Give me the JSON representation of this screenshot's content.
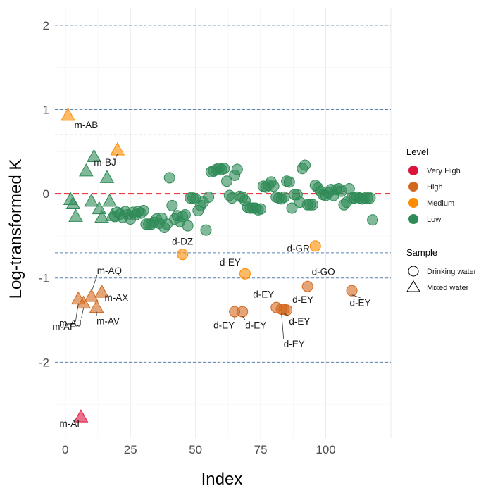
{
  "chart_data": {
    "type": "scatter",
    "xlabel": "Index",
    "ylabel": "Log-transformed K",
    "xlim": [
      -4,
      125
    ],
    "ylim": [
      -2.9,
      2.2
    ],
    "xticks": [
      0,
      25,
      50,
      75,
      100
    ],
    "yticks": [
      2,
      1,
      0,
      -1,
      -2
    ],
    "reference_lines": {
      "dashed_red": [
        0
      ],
      "dashed_blue": [
        2,
        1,
        0.7,
        -0.7,
        -1,
        -2
      ]
    },
    "grid": true,
    "legend": {
      "placement": "right",
      "level_title": "Level",
      "levels": [
        {
          "name": "Very High",
          "color": "#dc143c"
        },
        {
          "name": "High",
          "color": "#d2691e"
        },
        {
          "name": "Medium",
          "color": "#ff8c00"
        },
        {
          "name": "Low",
          "color": "#2e8b57"
        }
      ],
      "sample_title": "Sample",
      "samples": [
        {
          "name": "Drinking water",
          "shape": "circle"
        },
        {
          "name": "Mixed water",
          "shape": "triangle"
        }
      ]
    },
    "points": [
      {
        "x": 1,
        "y": 0.93,
        "level": "Medium",
        "sample": "Mixed water",
        "label": "m-AB"
      },
      {
        "x": 20,
        "y": 0.52,
        "level": "Medium",
        "sample": "Mixed water",
        "label": "m-BJ"
      },
      {
        "x": 2,
        "y": -0.07,
        "level": "Low",
        "sample": "Mixed water"
      },
      {
        "x": 3,
        "y": -0.12,
        "level": "Low",
        "sample": "Mixed water"
      },
      {
        "x": 4,
        "y": -0.27,
        "level": "Low",
        "sample": "Mixed water"
      },
      {
        "x": 8,
        "y": 0.27,
        "level": "Low",
        "sample": "Mixed water"
      },
      {
        "x": 10,
        "y": -0.09,
        "level": "Low",
        "sample": "Mixed water"
      },
      {
        "x": 11,
        "y": 0.44,
        "level": "Low",
        "sample": "Mixed water"
      },
      {
        "x": 13,
        "y": -0.18,
        "level": "Low",
        "sample": "Mixed water"
      },
      {
        "x": 14,
        "y": -0.28,
        "level": "Low",
        "sample": "Mixed water"
      },
      {
        "x": 16,
        "y": 0.19,
        "level": "Low",
        "sample": "Mixed water"
      },
      {
        "x": 17,
        "y": -0.09,
        "level": "Low",
        "sample": "Mixed water"
      },
      {
        "x": 18,
        "y": -0.26,
        "level": "Low",
        "sample": "Mixed water"
      },
      {
        "x": 5,
        "y": -1.25,
        "level": "High",
        "sample": "Mixed water",
        "label": "m-AF"
      },
      {
        "x": 7,
        "y": -1.3,
        "level": "High",
        "sample": "Mixed water",
        "label": "m-AJ"
      },
      {
        "x": 10,
        "y": -1.22,
        "level": "High",
        "sample": "Mixed water",
        "label": "m-AQ"
      },
      {
        "x": 12,
        "y": -1.35,
        "level": "High",
        "sample": "Mixed water",
        "label": "m-AV"
      },
      {
        "x": 14,
        "y": -1.17,
        "level": "High",
        "sample": "Mixed water",
        "label": "m-AX"
      },
      {
        "x": 6,
        "y": -2.65,
        "level": "Very High",
        "sample": "Mixed water",
        "label": "m-AI"
      },
      {
        "x": 19,
        "y": -0.27,
        "level": "Low",
        "sample": "Drinking water"
      },
      {
        "x": 20,
        "y": -0.22,
        "level": "Low",
        "sample": "Drinking water"
      },
      {
        "x": 21,
        "y": -0.24,
        "level": "Low",
        "sample": "Drinking water"
      },
      {
        "x": 22,
        "y": -0.28,
        "level": "Low",
        "sample": "Drinking water"
      },
      {
        "x": 23,
        "y": -0.21,
        "level": "Low",
        "sample": "Drinking water"
      },
      {
        "x": 24,
        "y": -0.25,
        "level": "Low",
        "sample": "Drinking water"
      },
      {
        "x": 25,
        "y": -0.3,
        "level": "Low",
        "sample": "Drinking water"
      },
      {
        "x": 26,
        "y": -0.22,
        "level": "Low",
        "sample": "Drinking water"
      },
      {
        "x": 27,
        "y": -0.25,
        "level": "Low",
        "sample": "Drinking water"
      },
      {
        "x": 28,
        "y": -0.21,
        "level": "Low",
        "sample": "Drinking water"
      },
      {
        "x": 29,
        "y": -0.23,
        "level": "Low",
        "sample": "Drinking water"
      },
      {
        "x": 30,
        "y": -0.2,
        "level": "Low",
        "sample": "Drinking water"
      },
      {
        "x": 31,
        "y": -0.36,
        "level": "Low",
        "sample": "Drinking water"
      },
      {
        "x": 32,
        "y": -0.36,
        "level": "Low",
        "sample": "Drinking water"
      },
      {
        "x": 33,
        "y": -0.36,
        "level": "Low",
        "sample": "Drinking water"
      },
      {
        "x": 34,
        "y": -0.34,
        "level": "Low",
        "sample": "Drinking water"
      },
      {
        "x": 35,
        "y": -0.3,
        "level": "Low",
        "sample": "Drinking water"
      },
      {
        "x": 36,
        "y": -0.35,
        "level": "Low",
        "sample": "Drinking water"
      },
      {
        "x": 37,
        "y": -0.29,
        "level": "Low",
        "sample": "Drinking water"
      },
      {
        "x": 38,
        "y": -0.4,
        "level": "Low",
        "sample": "Drinking water"
      },
      {
        "x": 39,
        "y": -0.36,
        "level": "Low",
        "sample": "Drinking water"
      },
      {
        "x": 40,
        "y": 0.19,
        "level": "Low",
        "sample": "Drinking water"
      },
      {
        "x": 41,
        "y": -0.14,
        "level": "Low",
        "sample": "Drinking water"
      },
      {
        "x": 42,
        "y": -0.3,
        "level": "Low",
        "sample": "Drinking water"
      },
      {
        "x": 43,
        "y": -0.26,
        "level": "Low",
        "sample": "Drinking water"
      },
      {
        "x": 44,
        "y": -0.33,
        "level": "Low",
        "sample": "Drinking water"
      },
      {
        "x": 45,
        "y": -0.27,
        "level": "Low",
        "sample": "Drinking water"
      },
      {
        "x": 46,
        "y": -0.25,
        "level": "Low",
        "sample": "Drinking water"
      },
      {
        "x": 47,
        "y": -0.38,
        "level": "Low",
        "sample": "Drinking water"
      },
      {
        "x": 48,
        "y": -0.05,
        "level": "Low",
        "sample": "Drinking water"
      },
      {
        "x": 49,
        "y": -0.05,
        "level": "Low",
        "sample": "Drinking water"
      },
      {
        "x": 50,
        "y": -0.06,
        "level": "Low",
        "sample": "Drinking water"
      },
      {
        "x": 51,
        "y": -0.2,
        "level": "Low",
        "sample": "Drinking water"
      },
      {
        "x": 52,
        "y": -0.14,
        "level": "Low",
        "sample": "Drinking water"
      },
      {
        "x": 53,
        "y": -0.1,
        "level": "Low",
        "sample": "Drinking water"
      },
      {
        "x": 54,
        "y": -0.43,
        "level": "Low",
        "sample": "Drinking water"
      },
      {
        "x": 55,
        "y": -0.04,
        "level": "Low",
        "sample": "Drinking water"
      },
      {
        "x": 56,
        "y": 0.26,
        "level": "Low",
        "sample": "Drinking water"
      },
      {
        "x": 57,
        "y": 0.27,
        "level": "Low",
        "sample": "Drinking water"
      },
      {
        "x": 58,
        "y": 0.29,
        "level": "Low",
        "sample": "Drinking water"
      },
      {
        "x": 59,
        "y": 0.3,
        "level": "Low",
        "sample": "Drinking water"
      },
      {
        "x": 60,
        "y": 0.29,
        "level": "Low",
        "sample": "Drinking water"
      },
      {
        "x": 61,
        "y": 0.3,
        "level": "Low",
        "sample": "Drinking water"
      },
      {
        "x": 62,
        "y": 0.15,
        "level": "Low",
        "sample": "Drinking water"
      },
      {
        "x": 63,
        "y": -0.02,
        "level": "Low",
        "sample": "Drinking water"
      },
      {
        "x": 64,
        "y": -0.05,
        "level": "Low",
        "sample": "Drinking water"
      },
      {
        "x": 65,
        "y": 0.22,
        "level": "Low",
        "sample": "Drinking water"
      },
      {
        "x": 66,
        "y": 0.29,
        "level": "Low",
        "sample": "Drinking water"
      },
      {
        "x": 67,
        "y": -0.03,
        "level": "Low",
        "sample": "Drinking water"
      },
      {
        "x": 68,
        "y": -0.04,
        "level": "Low",
        "sample": "Drinking water"
      },
      {
        "x": 69,
        "y": -0.08,
        "level": "Low",
        "sample": "Drinking water"
      },
      {
        "x": 70,
        "y": -0.16,
        "level": "Low",
        "sample": "Drinking water"
      },
      {
        "x": 71,
        "y": -0.17,
        "level": "Low",
        "sample": "Drinking water"
      },
      {
        "x": 72,
        "y": -0.17,
        "level": "Low",
        "sample": "Drinking water"
      },
      {
        "x": 73,
        "y": -0.17,
        "level": "Low",
        "sample": "Drinking water"
      },
      {
        "x": 74,
        "y": -0.19,
        "level": "Low",
        "sample": "Drinking water"
      },
      {
        "x": 75,
        "y": -0.18,
        "level": "Low",
        "sample": "Drinking water"
      },
      {
        "x": 76,
        "y": 0.09,
        "level": "Low",
        "sample": "Drinking water"
      },
      {
        "x": 77,
        "y": 0.08,
        "level": "Low",
        "sample": "Drinking water"
      },
      {
        "x": 78,
        "y": 0.1,
        "level": "Low",
        "sample": "Drinking water"
      },
      {
        "x": 79,
        "y": 0.14,
        "level": "Low",
        "sample": "Drinking water"
      },
      {
        "x": 80,
        "y": 0.09,
        "level": "Low",
        "sample": "Drinking water"
      },
      {
        "x": 81,
        "y": -0.04,
        "level": "Low",
        "sample": "Drinking water"
      },
      {
        "x": 82,
        "y": -0.05,
        "level": "Low",
        "sample": "Drinking water"
      },
      {
        "x": 83,
        "y": -0.06,
        "level": "Low",
        "sample": "Drinking water"
      },
      {
        "x": 84,
        "y": -0.04,
        "level": "Low",
        "sample": "Drinking water"
      },
      {
        "x": 85,
        "y": 0.15,
        "level": "Low",
        "sample": "Drinking water"
      },
      {
        "x": 86,
        "y": 0.14,
        "level": "Low",
        "sample": "Drinking water"
      },
      {
        "x": 87,
        "y": -0.17,
        "level": "Low",
        "sample": "Drinking water"
      },
      {
        "x": 88,
        "y": -0.01,
        "level": "Low",
        "sample": "Drinking water"
      },
      {
        "x": 89,
        "y": -0.01,
        "level": "Low",
        "sample": "Drinking water"
      },
      {
        "x": 90,
        "y": -0.1,
        "level": "Low",
        "sample": "Drinking water"
      },
      {
        "x": 91,
        "y": 0.3,
        "level": "Low",
        "sample": "Drinking water"
      },
      {
        "x": 92,
        "y": 0.34,
        "level": "Low",
        "sample": "Drinking water"
      },
      {
        "x": 93,
        "y": -0.13,
        "level": "Low",
        "sample": "Drinking water"
      },
      {
        "x": 94,
        "y": -0.13,
        "level": "Low",
        "sample": "Drinking water"
      },
      {
        "x": 95,
        "y": -0.13,
        "level": "Low",
        "sample": "Drinking water"
      },
      {
        "x": 96,
        "y": 0.1,
        "level": "Low",
        "sample": "Drinking water"
      },
      {
        "x": 97,
        "y": 0.07,
        "level": "Low",
        "sample": "Drinking water"
      },
      {
        "x": 98,
        "y": 0.03,
        "level": "Low",
        "sample": "Drinking water"
      },
      {
        "x": 99,
        "y": -0.01,
        "level": "Low",
        "sample": "Drinking water"
      },
      {
        "x": 100,
        "y": -0.02,
        "level": "Low",
        "sample": "Drinking water"
      },
      {
        "x": 101,
        "y": 0.01,
        "level": "Low",
        "sample": "Drinking water"
      },
      {
        "x": 102,
        "y": 0.05,
        "level": "Low",
        "sample": "Drinking water"
      },
      {
        "x": 103,
        "y": -0.02,
        "level": "Low",
        "sample": "Drinking water"
      },
      {
        "x": 104,
        "y": 0.05,
        "level": "Low",
        "sample": "Drinking water"
      },
      {
        "x": 105,
        "y": 0.06,
        "level": "Low",
        "sample": "Drinking water"
      },
      {
        "x": 106,
        "y": 0.03,
        "level": "Low",
        "sample": "Drinking water"
      },
      {
        "x": 107,
        "y": -0.13,
        "level": "Low",
        "sample": "Drinking water"
      },
      {
        "x": 108,
        "y": -0.1,
        "level": "Low",
        "sample": "Drinking water"
      },
      {
        "x": 109,
        "y": 0.06,
        "level": "Low",
        "sample": "Drinking water"
      },
      {
        "x": 110,
        "y": -0.05,
        "level": "Low",
        "sample": "Drinking water"
      },
      {
        "x": 111,
        "y": -0.05,
        "level": "Low",
        "sample": "Drinking water"
      },
      {
        "x": 112,
        "y": -0.04,
        "level": "Low",
        "sample": "Drinking water"
      },
      {
        "x": 113,
        "y": -0.05,
        "level": "Low",
        "sample": "Drinking water"
      },
      {
        "x": 114,
        "y": -0.06,
        "level": "Low",
        "sample": "Drinking water"
      },
      {
        "x": 115,
        "y": -0.05,
        "level": "Low",
        "sample": "Drinking water"
      },
      {
        "x": 116,
        "y": -0.05,
        "level": "Low",
        "sample": "Drinking water"
      },
      {
        "x": 117,
        "y": -0.05,
        "level": "Low",
        "sample": "Drinking water"
      },
      {
        "x": 118,
        "y": -0.31,
        "level": "Low",
        "sample": "Drinking water"
      },
      {
        "x": 45,
        "y": -0.72,
        "level": "Medium",
        "sample": "Drinking water",
        "label": "d-DZ"
      },
      {
        "x": 69,
        "y": -0.95,
        "level": "Medium",
        "sample": "Drinking water",
        "label": "d-EY"
      },
      {
        "x": 96,
        "y": -0.62,
        "level": "Medium",
        "sample": "Drinking water",
        "label": "d-GR"
      },
      {
        "x": 65,
        "y": -1.4,
        "level": "High",
        "sample": "Drinking water",
        "label": "d-EY"
      },
      {
        "x": 68,
        "y": -1.4,
        "level": "High",
        "sample": "Drinking water",
        "label": "d-EY"
      },
      {
        "x": 81,
        "y": -1.35,
        "level": "High",
        "sample": "Drinking water",
        "label": "d-EY"
      },
      {
        "x": 83,
        "y": -1.37,
        "level": "High",
        "sample": "Drinking water",
        "label": "d-EY"
      },
      {
        "x": 84,
        "y": -1.37,
        "level": "High",
        "sample": "Drinking water",
        "label": "d-EY"
      },
      {
        "x": 85,
        "y": -1.38,
        "level": "High",
        "sample": "Drinking water",
        "label": "d-EY"
      },
      {
        "x": 93,
        "y": -1.1,
        "level": "High",
        "sample": "Drinking water",
        "label": "d-GO"
      },
      {
        "x": 110,
        "y": -1.15,
        "level": "High",
        "sample": "Drinking water",
        "label": "d-EY"
      }
    ]
  }
}
